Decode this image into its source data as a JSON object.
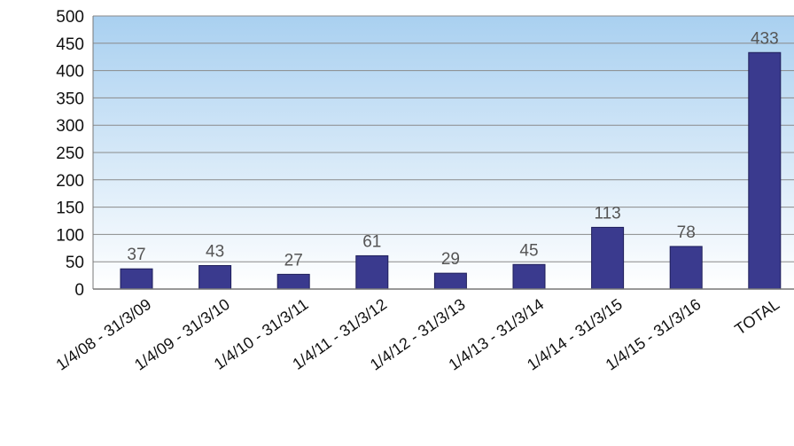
{
  "chart_data": {
    "type": "bar",
    "categories": [
      "1/4/08 - 31/3/09",
      "1/4/09 - 31/3/10",
      "1/4/10 - 31/3/11",
      "1/4/11 - 31/3/12",
      "1/4/12 - 31/3/13",
      "1/4/13 - 31/3/14",
      "1/4/14 - 31/3/15",
      "1/4/15 - 31/3/16",
      "TOTAL"
    ],
    "values": [
      37,
      43,
      27,
      61,
      29,
      45,
      113,
      78,
      433
    ],
    "title": "",
    "xlabel": "",
    "ylabel": "",
    "ylim": [
      0,
      500
    ],
    "yticks": [
      0,
      50,
      100,
      150,
      200,
      250,
      300,
      350,
      400,
      450,
      500
    ],
    "grid": true,
    "legend": "none",
    "colors": {
      "bar": "#3a3a8e",
      "bar_edge": "#1e1e5a",
      "plot_top": "#a9d0f0",
      "plot_bottom": "#ffffff",
      "grid": "#8a8a8a"
    }
  }
}
